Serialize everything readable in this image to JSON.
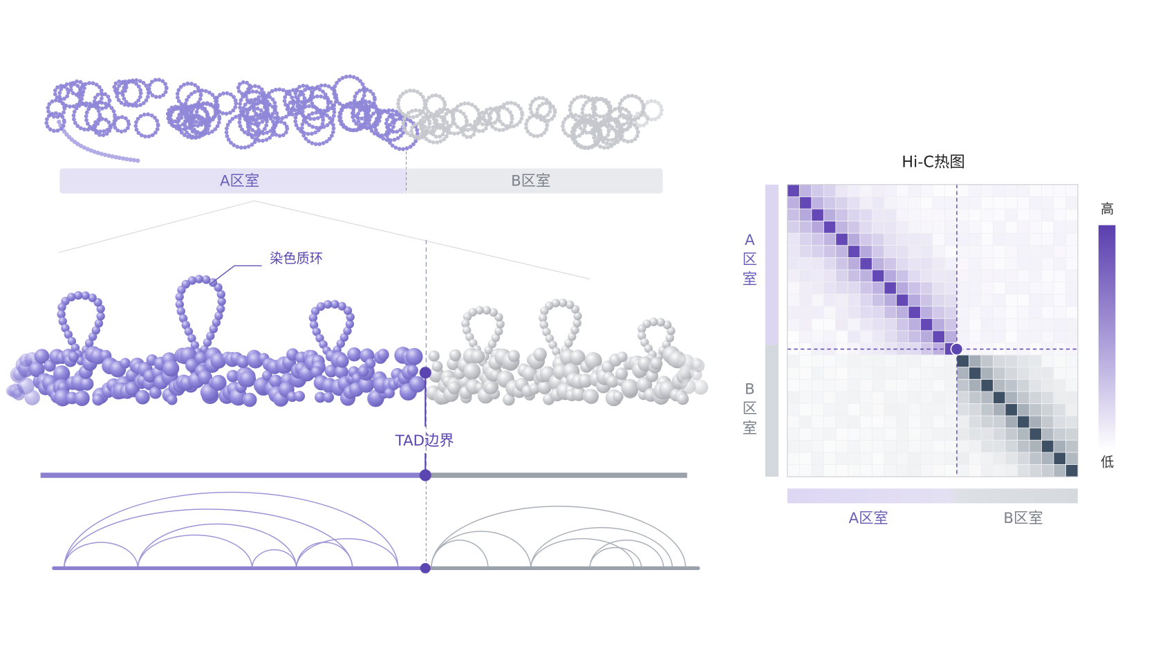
{
  "chromatin_overview": {
    "a_label": "A区室",
    "b_label": "B区室"
  },
  "loop_label": "染色质环",
  "tad_boundary_label": "TAD边界",
  "heatmap": {
    "title": "Hi-C热图",
    "row_labels": {
      "a": [
        "A",
        "区",
        "室"
      ],
      "b": [
        "B",
        "区",
        "室"
      ]
    },
    "col_labels": {
      "a": "A区室",
      "b": "B区室"
    },
    "colorbar": {
      "high": "高",
      "low": "低"
    }
  }
}
